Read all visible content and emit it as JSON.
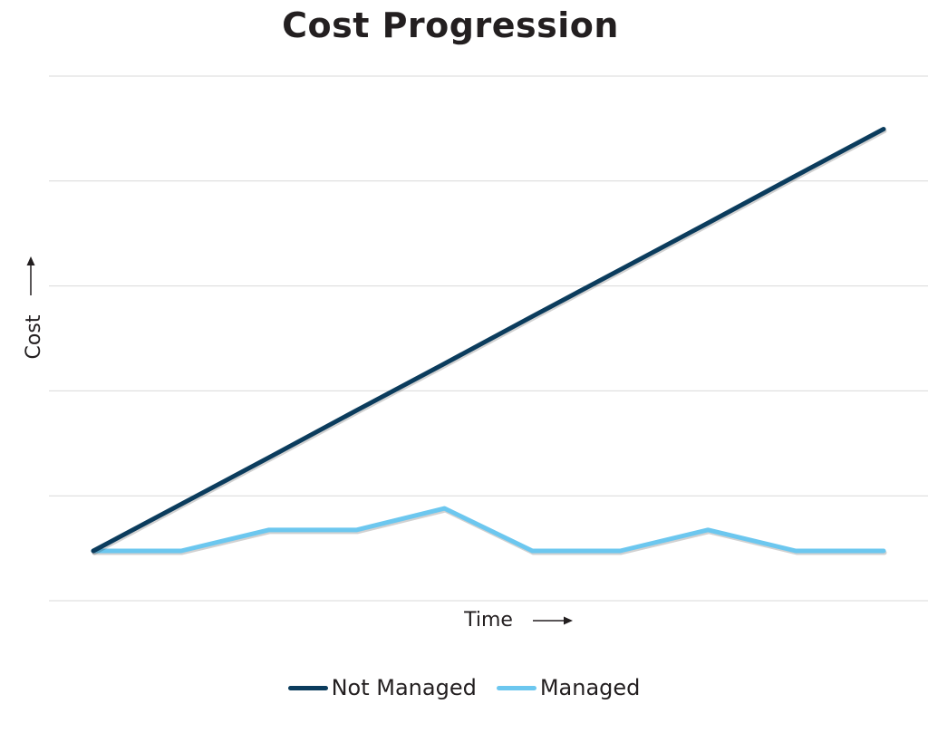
{
  "chart_data": {
    "type": "line",
    "title": "Cost Progression",
    "xlabel": "Time",
    "ylabel": "Cost",
    "x": [
      1,
      2,
      3,
      4,
      5,
      6,
      7,
      8,
      9,
      10
    ],
    "ylim": [
      0,
      100
    ],
    "grid": true,
    "legend_position": "bottom",
    "series": [
      {
        "name": "Not Managed",
        "color": "#0b3c5d",
        "values": [
          9.5,
          18.4,
          27.3,
          36.3,
          45.2,
          54.2,
          63.1,
          72.0,
          81.0,
          89.9
        ]
      },
      {
        "name": "Managed",
        "color": "#6cc7ef",
        "values": [
          9.5,
          9.5,
          13.5,
          13.5,
          17.6,
          9.5,
          9.5,
          13.5,
          9.5,
          9.5
        ]
      }
    ]
  }
}
